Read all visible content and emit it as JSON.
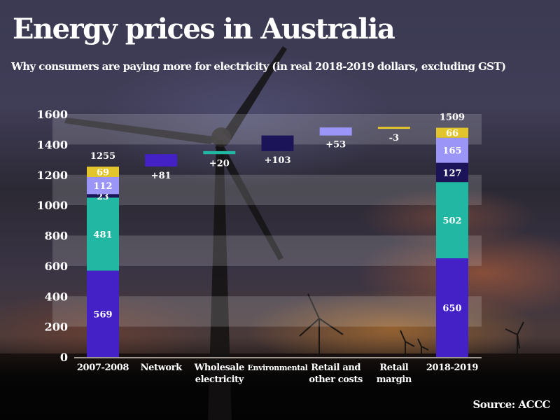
{
  "title": "Energy prices in Australia",
  "subtitle": "Why consumers are paying more for electricity (in real 2018-2019 dollars, excluding GST)",
  "source": "Source: ACCC",
  "colors": {
    "network": "#4421c6",
    "wholesale": "#22b7a2",
    "environmental": "#1c1459",
    "retail_other": "#9b95f7",
    "retail_margin": "#e2c42c"
  },
  "chart_data": {
    "type": "bar",
    "subtype": "waterfall",
    "title": "Energy prices in Australia",
    "subtitle": "Why consumers are paying more for electricity (in real 2018-2019 dollars, excluding GST)",
    "xlabel": "",
    "ylabel": "",
    "ylim": [
      0,
      1600
    ],
    "yticks": [
      0,
      200,
      400,
      600,
      800,
      1000,
      1200,
      1400,
      1600
    ],
    "grid": "alternating horizontal bands",
    "legend": "none",
    "components": [
      "Network",
      "Wholesale electricity",
      "Environmental",
      "Retail and other costs",
      "Retail margin"
    ],
    "categories": [
      {
        "label": "2007-2008",
        "lines": [
          "2007-2008"
        ],
        "kind": "total",
        "total": 1255,
        "segments": [
          {
            "component": "network",
            "value": 569,
            "label": "569"
          },
          {
            "component": "wholesale",
            "value": 481,
            "label": "481"
          },
          {
            "component": "environmental",
            "value": 23,
            "label": "23"
          },
          {
            "component": "retail_other",
            "value": 112,
            "label": "112"
          },
          {
            "component": "retail_margin",
            "value": 69,
            "label": "69"
          }
        ]
      },
      {
        "label": "Network",
        "lines": [
          "Network"
        ],
        "kind": "change",
        "component": "network",
        "change": 81,
        "change_label": "+81"
      },
      {
        "label": "Wholesale electricity",
        "lines": [
          "Wholesale",
          "electricity"
        ],
        "kind": "change",
        "component": "wholesale",
        "change": 20,
        "change_label": "+20"
      },
      {
        "label": "Environmental",
        "lines": [
          "Environmental"
        ],
        "kind": "change",
        "component": "environmental",
        "change": 103,
        "change_label": "+103"
      },
      {
        "label": "Retail and other costs",
        "lines": [
          "Retail and",
          "other costs"
        ],
        "kind": "change",
        "component": "retail_other",
        "change": 53,
        "change_label": "+53"
      },
      {
        "label": "Retail margin",
        "lines": [
          "Retail",
          "margin"
        ],
        "kind": "change",
        "component": "retail_margin",
        "change": -3,
        "change_label": "-3"
      },
      {
        "label": "2018-2019",
        "lines": [
          "2018-2019"
        ],
        "kind": "total",
        "total": 1509,
        "segments": [
          {
            "component": "network",
            "value": 650,
            "label": "650"
          },
          {
            "component": "wholesale",
            "value": 502,
            "label": "502"
          },
          {
            "component": "environmental",
            "value": 127,
            "label": "127"
          },
          {
            "component": "retail_other",
            "value": 165,
            "label": "165"
          },
          {
            "component": "retail_margin",
            "value": 66,
            "label": "66"
          }
        ]
      }
    ]
  }
}
